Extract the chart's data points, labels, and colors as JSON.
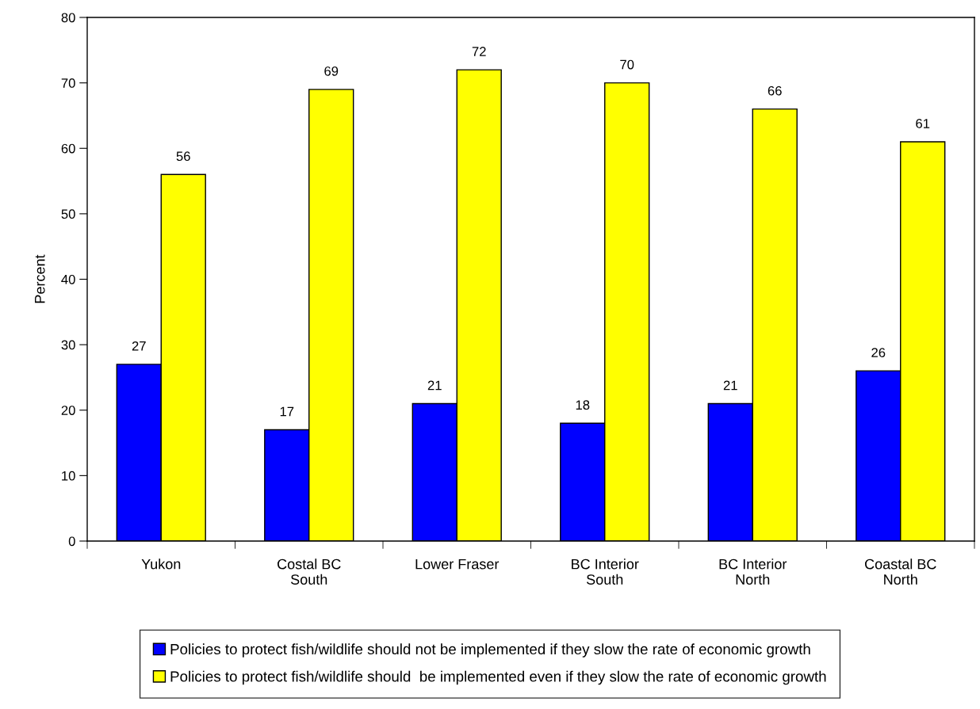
{
  "chart_data": {
    "type": "bar",
    "ylabel": "Percent",
    "categories": [
      "Yukon",
      "Costal BC\nSouth",
      "Lower Fraser",
      "BC Interior\nSouth",
      "BC Interior\nNorth",
      "Coastal BC\nNorth"
    ],
    "series": [
      {
        "name": "Policies to protect fish/wildlife should not be implemented if they slow the rate of economic growth",
        "color": "#0000ff",
        "values": [
          27,
          17,
          21,
          18,
          21,
          26
        ]
      },
      {
        "name": "Policies to protect fish/wildlife should  be implemented even if they slow the rate of economic growth",
        "color": "#ffff00",
        "values": [
          56,
          69,
          72,
          70,
          66,
          61
        ]
      }
    ],
    "ylim": [
      0,
      80
    ],
    "yticks": [
      0,
      10,
      20,
      30,
      40,
      50,
      60,
      70,
      80
    ],
    "data_labels": true,
    "grid": false,
    "legend": "bottom"
  }
}
